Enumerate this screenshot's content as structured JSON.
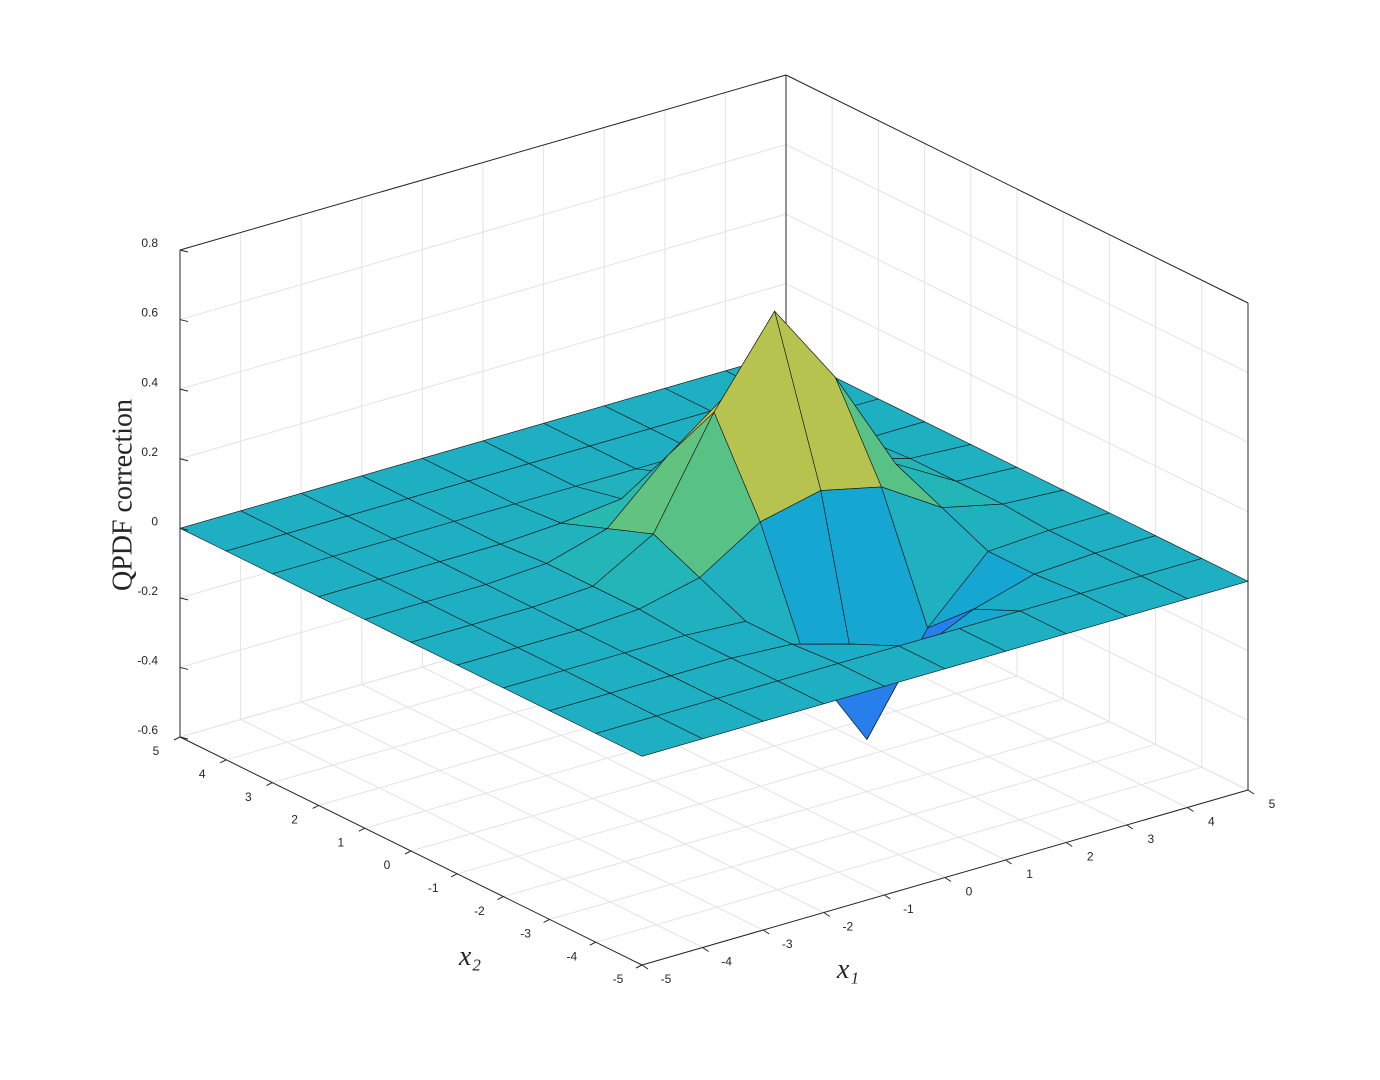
{
  "chart_data": {
    "type": "surface",
    "xlabel": "x₁",
    "ylabel": "x₂",
    "zlabel": "QPDF correction",
    "x": [
      -5,
      -4,
      -3,
      -2,
      -1,
      0,
      1,
      2,
      3,
      4,
      5
    ],
    "y": [
      -5,
      -4,
      -3,
      -2,
      -1,
      0,
      1,
      2,
      3,
      4,
      5
    ],
    "z": [
      [
        0,
        0,
        0,
        0,
        0,
        0,
        0,
        0,
        0,
        0,
        0
      ],
      [
        0,
        0,
        0,
        0,
        0,
        0,
        0,
        0,
        0,
        0,
        0
      ],
      [
        0,
        0,
        0,
        0,
        -0.01,
        -0.06,
        -0.14,
        -0.06,
        -0.01,
        0,
        0
      ],
      [
        0,
        0,
        0,
        0,
        -0.01,
        -0.18,
        -0.45,
        -0.18,
        -0.01,
        0,
        0
      ],
      [
        0,
        0,
        0,
        0.01,
        0.05,
        0.16,
        0.2,
        0.16,
        0.05,
        0.01,
        0
      ],
      [
        0,
        0,
        0,
        0.01,
        0.11,
        0.41,
        0.65,
        0.41,
        0.11,
        0.01,
        0
      ],
      [
        0,
        0,
        0,
        0.01,
        0.06,
        0.22,
        0.35,
        0.22,
        0.06,
        0.01,
        0
      ],
      [
        0,
        0,
        0,
        0,
        0.01,
        0.03,
        0.05,
        0.03,
        0.01,
        0,
        0
      ],
      [
        0,
        0,
        0,
        0,
        0,
        0,
        0,
        0,
        0,
        0,
        0
      ],
      [
        0,
        0,
        0,
        0,
        0,
        0,
        0,
        0,
        0,
        0,
        0
      ],
      [
        0,
        0,
        0,
        0,
        0,
        0,
        0,
        0,
        0,
        0,
        0
      ]
    ],
    "xlim": [
      -5,
      5
    ],
    "ylim": [
      -5,
      5
    ],
    "zlim": [
      -0.6,
      0.8
    ],
    "xticks": [
      -5,
      -4,
      -3,
      -2,
      -1,
      0,
      1,
      2,
      3,
      4,
      5
    ],
    "yticks": [
      -5,
      -4,
      -3,
      -2,
      -1,
      0,
      1,
      2,
      3,
      4,
      5
    ],
    "zticks": [
      -0.6,
      -0.4,
      -0.2,
      0,
      0.2,
      0.4,
      0.6,
      0.8
    ],
    "grid": true,
    "colormap": [
      "#3e26a8",
      "#2f6df5",
      "#13a4d6",
      "#2bbcaa",
      "#8ec95b",
      "#f4ba3c",
      "#f9fb15"
    ]
  }
}
